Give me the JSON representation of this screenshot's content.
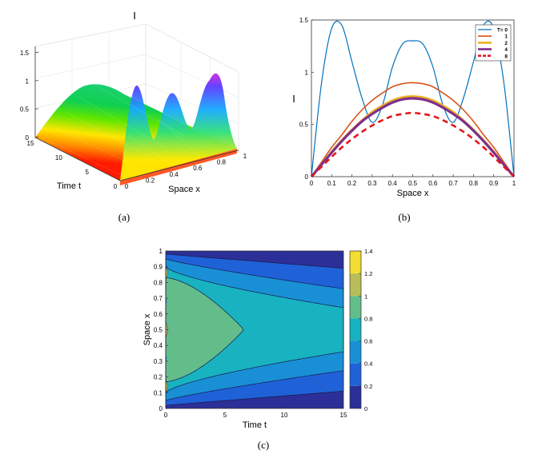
{
  "chart_data": [
    {
      "type": "surface",
      "panel": "a",
      "caption": "(a)",
      "zlabel": "I",
      "xlabel": "Space x",
      "ylabel": "Time t",
      "x_ticks": [
        "0",
        "0.2",
        "0.4",
        "0.6",
        "0.8",
        "1"
      ],
      "y_ticks": [
        "0",
        "5",
        "10",
        "15"
      ],
      "z_ticks": [
        "0",
        "0.5",
        "1",
        "1.5"
      ],
      "xlim": [
        0,
        1
      ],
      "ylim": [
        0,
        15
      ],
      "zlim": [
        0,
        1.5
      ]
    },
    {
      "type": "line",
      "panel": "b",
      "caption": "(b)",
      "ylabel": "I",
      "xlabel": "Space x",
      "xlim": [
        0,
        1
      ],
      "ylim": [
        0,
        1.5
      ],
      "x_ticks": [
        "0",
        "0.1",
        "0.2",
        "0.3",
        "0.4",
        "0.5",
        "0.6",
        "0.7",
        "0.8",
        "0.9",
        "1"
      ],
      "y_ticks": [
        "0",
        "0.5",
        "1",
        "1.5"
      ],
      "x": [
        0,
        0.05,
        0.1,
        0.15,
        0.2,
        0.25,
        0.3,
        0.35,
        0.4,
        0.45,
        0.5,
        0.55,
        0.6,
        0.65,
        0.7,
        0.75,
        0.8,
        0.85,
        0.9,
        0.95,
        1
      ],
      "series": [
        {
          "name": "T= 0",
          "color": "#0072bd",
          "width": 1.2,
          "dash": "",
          "values": [
            0,
            0.9,
            1.42,
            1.45,
            1.1,
            0.75,
            0.52,
            0.68,
            1.05,
            1.27,
            1.3,
            1.27,
            1.05,
            0.68,
            0.52,
            0.75,
            1.1,
            1.45,
            1.42,
            0.9,
            0
          ]
        },
        {
          "name": "1",
          "color": "#d95319",
          "width": 1.6,
          "dash": "",
          "values": [
            0,
            0.14,
            0.28,
            0.4,
            0.53,
            0.64,
            0.73,
            0.8,
            0.86,
            0.89,
            0.9,
            0.89,
            0.86,
            0.8,
            0.73,
            0.64,
            0.53,
            0.4,
            0.28,
            0.14,
            0
          ]
        },
        {
          "name": "2",
          "color": "#edb120",
          "width": 2.6,
          "dash": "",
          "values": [
            0,
            0.12,
            0.24,
            0.35,
            0.45,
            0.54,
            0.62,
            0.68,
            0.73,
            0.76,
            0.77,
            0.76,
            0.73,
            0.68,
            0.62,
            0.54,
            0.45,
            0.35,
            0.24,
            0.12,
            0
          ]
        },
        {
          "name": "4",
          "color": "#7e2f8e",
          "width": 3.2,
          "dash": "",
          "values": [
            0,
            0.115,
            0.23,
            0.34,
            0.44,
            0.53,
            0.6,
            0.66,
            0.71,
            0.74,
            0.75,
            0.74,
            0.71,
            0.66,
            0.6,
            0.53,
            0.44,
            0.34,
            0.23,
            0.115,
            0
          ]
        },
        {
          "name": "8",
          "color": "#e4161b",
          "width": 2.6,
          "dash": "7,5",
          "values": [
            0,
            0.095,
            0.19,
            0.28,
            0.36,
            0.43,
            0.49,
            0.54,
            0.58,
            0.6,
            0.61,
            0.6,
            0.58,
            0.54,
            0.49,
            0.43,
            0.36,
            0.28,
            0.19,
            0.095,
            0
          ]
        }
      ]
    },
    {
      "type": "contour",
      "panel": "c",
      "caption": "(c)",
      "xlabel": "Time t",
      "ylabel": "Space x",
      "xlim": [
        0,
        15
      ],
      "ylim": [
        0,
        1
      ],
      "x_ticks": [
        "0",
        "5",
        "10",
        "15"
      ],
      "y_ticks": [
        "0",
        "0.1",
        "0.2",
        "0.3",
        "0.4",
        "0.5",
        "0.6",
        "0.7",
        "0.8",
        "0.9",
        "1"
      ],
      "colorbar_ticks": [
        "0",
        "0.2",
        "0.4",
        "0.6",
        "0.8",
        "1",
        "1.2",
        "1.4"
      ],
      "colorbar_range": [
        0,
        1.4
      ],
      "levels": [
        {
          "min": 0,
          "max": 0.2,
          "color": "#2c2f97"
        },
        {
          "min": 0.2,
          "max": 0.4,
          "color": "#1f62d8"
        },
        {
          "min": 0.4,
          "max": 0.6,
          "color": "#1990d6"
        },
        {
          "min": 0.6,
          "max": 0.8,
          "color": "#18b2c0"
        },
        {
          "min": 0.8,
          "max": 1.0,
          "color": "#63bd8b"
        },
        {
          "min": 1.0,
          "max": 1.2,
          "color": "#b8bd5a"
        },
        {
          "min": 1.2,
          "max": 1.4,
          "color": "#f2dd32"
        }
      ]
    }
  ]
}
